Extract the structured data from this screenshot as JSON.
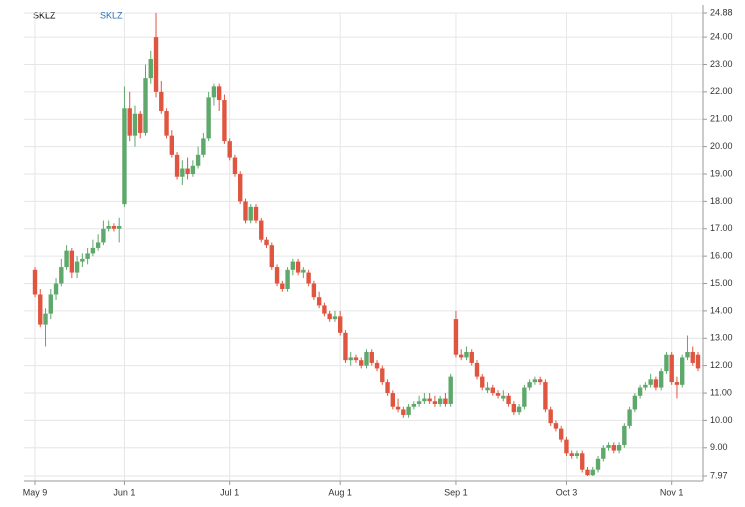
{
  "chart_data": {
    "type": "candlestick",
    "title": "SKLZ",
    "categories": [
      "May 9",
      null,
      null,
      null,
      null,
      null,
      null,
      null,
      null,
      null,
      null,
      null,
      null,
      null,
      null,
      null,
      null,
      "Jun 1",
      null,
      null,
      null,
      null,
      null,
      null,
      null,
      null,
      null,
      null,
      null,
      null,
      null,
      null,
      null,
      null,
      null,
      null,
      null,
      "Jul 1",
      null,
      null,
      null,
      null,
      null,
      null,
      null,
      null,
      null,
      null,
      null,
      null,
      null,
      null,
      null,
      null,
      null,
      null,
      null,
      null,
      "Aug 1",
      null,
      null,
      null,
      null,
      null,
      null,
      null,
      null,
      null,
      null,
      null,
      null,
      null,
      null,
      null,
      null,
      null,
      null,
      null,
      null,
      null,
      "Sep 1",
      null,
      null,
      null,
      null,
      null,
      null,
      null,
      null,
      null,
      null,
      null,
      null,
      null,
      null,
      null,
      null,
      null,
      null,
      null,
      null,
      "Oct 3",
      null,
      null,
      null,
      null,
      null,
      null,
      null,
      null,
      null,
      null,
      null,
      null,
      null,
      null,
      null,
      null,
      null,
      null,
      null,
      "Nov 1",
      null,
      null,
      null,
      null,
      null
    ],
    "series": [
      {
        "name": "SKLZ",
        "color": "#2a6ebb",
        "up_color": "#5fa86b",
        "down_color": "#e0553f",
        "values": [
          [
            15.5,
            15.6,
            14.5,
            14.6
          ],
          [
            14.6,
            14.8,
            13.4,
            13.5
          ],
          [
            13.5,
            14.1,
            12.7,
            13.9
          ],
          [
            13.9,
            14.8,
            13.7,
            14.6
          ],
          [
            14.6,
            15.2,
            14.4,
            15.0
          ],
          [
            15.0,
            15.9,
            14.9,
            15.6
          ],
          [
            15.6,
            16.4,
            15.5,
            16.2
          ],
          [
            16.2,
            16.3,
            15.2,
            15.4
          ],
          [
            15.4,
            16.0,
            15.2,
            15.8
          ],
          [
            15.8,
            16.1,
            15.6,
            15.9
          ],
          [
            15.9,
            16.3,
            15.7,
            16.1
          ],
          [
            16.1,
            16.6,
            16.0,
            16.3
          ],
          [
            16.3,
            16.8,
            16.2,
            16.5
          ],
          [
            16.5,
            17.3,
            16.4,
            17.0
          ],
          [
            17.0,
            17.3,
            16.9,
            17.1
          ],
          [
            17.1,
            17.2,
            16.9,
            17.0
          ],
          [
            17.0,
            17.4,
            16.5,
            17.1
          ],
          [
            17.9,
            22.2,
            17.8,
            21.4
          ],
          [
            21.4,
            22.0,
            20.2,
            20.4
          ],
          [
            20.4,
            21.5,
            20.0,
            21.2
          ],
          [
            21.2,
            21.3,
            20.3,
            20.5
          ],
          [
            20.5,
            23.0,
            20.4,
            22.5
          ],
          [
            22.5,
            23.5,
            22.3,
            23.2
          ],
          [
            24.0,
            24.88,
            21.8,
            22.0
          ],
          [
            22.0,
            22.4,
            21.2,
            21.3
          ],
          [
            21.3,
            21.4,
            20.3,
            20.4
          ],
          [
            20.4,
            20.6,
            19.6,
            19.7
          ],
          [
            19.7,
            19.8,
            18.8,
            18.9
          ],
          [
            18.9,
            19.5,
            18.6,
            19.2
          ],
          [
            19.2,
            19.6,
            18.8,
            19.0
          ],
          [
            19.0,
            19.5,
            18.9,
            19.3
          ],
          [
            19.3,
            20.0,
            19.2,
            19.7
          ],
          [
            19.7,
            20.5,
            19.6,
            20.3
          ],
          [
            20.3,
            22.0,
            20.2,
            21.8
          ],
          [
            21.8,
            22.3,
            21.5,
            22.2
          ],
          [
            22.2,
            22.3,
            21.3,
            21.7
          ],
          [
            21.7,
            21.9,
            20.1,
            20.2
          ],
          [
            20.2,
            20.3,
            19.5,
            19.6
          ],
          [
            19.6,
            19.7,
            18.9,
            19.0
          ],
          [
            19.0,
            19.1,
            17.9,
            18.0
          ],
          [
            18.0,
            18.1,
            17.2,
            17.3
          ],
          [
            17.3,
            17.9,
            17.2,
            17.8
          ],
          [
            17.8,
            17.9,
            17.2,
            17.3
          ],
          [
            17.3,
            17.4,
            16.5,
            16.6
          ],
          [
            16.6,
            16.7,
            16.3,
            16.4
          ],
          [
            16.4,
            16.5,
            15.5,
            15.6
          ],
          [
            15.6,
            15.7,
            14.9,
            15.0
          ],
          [
            15.0,
            15.1,
            14.7,
            14.8
          ],
          [
            14.8,
            15.6,
            14.7,
            15.5
          ],
          [
            15.5,
            15.9,
            15.3,
            15.8
          ],
          [
            15.8,
            15.9,
            15.3,
            15.4
          ],
          [
            15.4,
            15.6,
            15.2,
            15.5
          ],
          [
            15.4,
            15.5,
            14.9,
            15.0
          ],
          [
            15.0,
            15.1,
            14.4,
            14.5
          ],
          [
            14.5,
            14.7,
            14.1,
            14.2
          ],
          [
            14.2,
            14.3,
            13.8,
            13.9
          ],
          [
            13.9,
            14.0,
            13.6,
            13.7
          ],
          [
            13.7,
            14.0,
            13.6,
            13.8
          ],
          [
            13.8,
            14.0,
            13.1,
            13.2
          ],
          [
            13.2,
            13.3,
            12.1,
            12.2
          ],
          [
            12.2,
            12.5,
            12.0,
            12.3
          ],
          [
            12.3,
            12.4,
            12.1,
            12.2
          ],
          [
            12.2,
            12.3,
            11.9,
            12.0
          ],
          [
            12.0,
            12.6,
            11.9,
            12.5
          ],
          [
            12.5,
            12.6,
            12.0,
            12.1
          ],
          [
            12.1,
            12.2,
            11.8,
            11.9
          ],
          [
            11.9,
            12.0,
            11.3,
            11.4
          ],
          [
            11.4,
            11.5,
            10.9,
            11.0
          ],
          [
            11.0,
            11.1,
            10.4,
            10.5
          ],
          [
            10.5,
            10.8,
            10.3,
            10.4
          ],
          [
            10.4,
            10.5,
            10.1,
            10.2
          ],
          [
            10.2,
            10.6,
            10.1,
            10.5
          ],
          [
            10.5,
            10.7,
            10.4,
            10.6
          ],
          [
            10.6,
            10.9,
            10.5,
            10.7
          ],
          [
            10.7,
            11.0,
            10.6,
            10.8
          ],
          [
            10.8,
            11.0,
            10.6,
            10.7
          ],
          [
            10.7,
            10.9,
            10.5,
            10.6
          ],
          [
            10.6,
            10.9,
            10.5,
            10.8
          ],
          [
            10.8,
            11.0,
            10.5,
            10.6
          ],
          [
            10.6,
            11.7,
            10.5,
            11.6
          ],
          [
            13.7,
            14.0,
            12.3,
            12.4
          ],
          [
            12.4,
            12.6,
            12.2,
            12.3
          ],
          [
            12.3,
            12.7,
            12.2,
            12.5
          ],
          [
            12.5,
            12.6,
            12.0,
            12.1
          ],
          [
            12.1,
            12.2,
            11.5,
            11.6
          ],
          [
            11.6,
            11.7,
            11.1,
            11.2
          ],
          [
            11.1,
            11.4,
            11.0,
            11.2
          ],
          [
            11.2,
            11.3,
            10.9,
            11.0
          ],
          [
            11.0,
            11.1,
            10.8,
            10.9
          ],
          [
            10.8,
            11.1,
            10.7,
            10.9
          ],
          [
            10.9,
            11.0,
            10.5,
            10.6
          ],
          [
            10.6,
            10.7,
            10.2,
            10.3
          ],
          [
            10.3,
            10.6,
            10.2,
            10.5
          ],
          [
            10.5,
            11.3,
            10.4,
            11.2
          ],
          [
            11.2,
            11.5,
            11.1,
            11.4
          ],
          [
            11.4,
            11.6,
            11.3,
            11.5
          ],
          [
            11.5,
            11.6,
            11.3,
            11.4
          ],
          [
            11.4,
            11.5,
            10.3,
            10.4
          ],
          [
            10.4,
            10.5,
            9.8,
            9.9
          ],
          [
            9.9,
            10.0,
            9.6,
            9.7
          ],
          [
            9.7,
            9.8,
            9.2,
            9.3
          ],
          [
            9.3,
            9.4,
            8.7,
            8.8
          ],
          [
            8.8,
            8.9,
            8.6,
            8.7
          ],
          [
            8.7,
            8.9,
            8.6,
            8.8
          ],
          [
            8.8,
            8.9,
            8.1,
            8.2
          ],
          [
            8.2,
            8.3,
            7.97,
            8.0
          ],
          [
            8.0,
            8.3,
            7.97,
            8.2
          ],
          [
            8.2,
            8.7,
            8.1,
            8.6
          ],
          [
            8.6,
            9.1,
            8.5,
            9.0
          ],
          [
            9.0,
            9.2,
            8.9,
            9.1
          ],
          [
            9.1,
            9.2,
            8.8,
            8.9
          ],
          [
            8.9,
            9.2,
            8.8,
            9.1
          ],
          [
            9.1,
            9.9,
            9.0,
            9.8
          ],
          [
            9.8,
            10.5,
            9.7,
            10.4
          ],
          [
            10.4,
            11.0,
            10.3,
            10.9
          ],
          [
            10.9,
            11.3,
            10.8,
            11.2
          ],
          [
            11.2,
            11.4,
            11.1,
            11.3
          ],
          [
            11.3,
            11.7,
            11.2,
            11.5
          ],
          [
            11.5,
            11.6,
            11.1,
            11.2
          ],
          [
            11.2,
            11.9,
            11.1,
            11.8
          ],
          [
            11.8,
            12.5,
            11.7,
            12.4
          ],
          [
            12.4,
            12.5,
            11.3,
            11.4
          ],
          [
            11.4,
            11.6,
            10.8,
            11.3
          ],
          [
            11.3,
            12.4,
            11.2,
            12.3
          ],
          [
            12.3,
            13.1,
            12.2,
            12.5
          ],
          [
            12.5,
            12.7,
            12.0,
            12.1
          ],
          [
            12.4,
            12.5,
            11.8,
            11.9
          ]
        ]
      }
    ],
    "ylim": [
      7.97,
      24.88
    ],
    "yticks": [
      7.97,
      {
        "value": 9,
        "label": "9.00"
      },
      {
        "value": 10,
        "label": "10.00"
      },
      {
        "value": 11,
        "label": "11.00"
      },
      {
        "value": 12,
        "label": "12.00"
      },
      {
        "value": 13,
        "label": "13.00"
      },
      {
        "value": 14,
        "label": "14.00"
      },
      {
        "value": 15,
        "label": "15.00"
      },
      {
        "value": 16,
        "label": "16.00"
      },
      {
        "value": 17,
        "label": "17.00"
      },
      {
        "value": 18,
        "label": "18.00"
      },
      {
        "value": 19,
        "label": "19.00"
      },
      {
        "value": 20,
        "label": "20.00"
      },
      {
        "value": 21,
        "label": "21.00"
      },
      {
        "value": 22,
        "label": "22.00"
      },
      {
        "value": 23,
        "label": "23.00"
      },
      {
        "value": 24,
        "label": "24.00"
      },
      24.88
    ],
    "grid": true
  }
}
